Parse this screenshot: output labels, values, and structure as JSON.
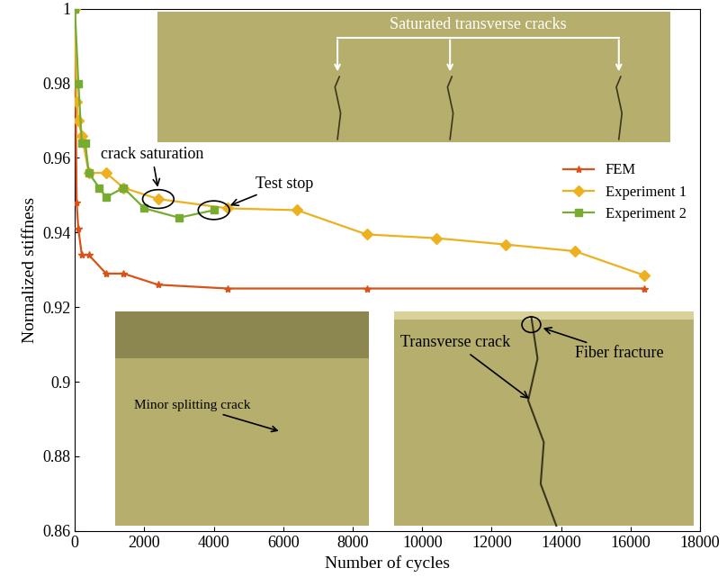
{
  "chart_data": {
    "type": "line",
    "x_label": "Number of cycles",
    "y_label": "Normalized stiffness",
    "xlim": [
      0,
      18000
    ],
    "xticks": [
      0,
      2000,
      4000,
      6000,
      8000,
      10000,
      12000,
      14000,
      16000,
      18000
    ],
    "ylim": [
      0.86,
      1
    ],
    "yticks": [
      0.86,
      0.88,
      0.9,
      0.92,
      0.94,
      0.96,
      0.98,
      1
    ],
    "legend": "upper right",
    "series": [
      {
        "name": "FEM",
        "color": "#d95319",
        "marker": "*",
        "line_style": "solid",
        "x": [
          0,
          50,
          100,
          200,
          400,
          900,
          1400,
          2400,
          4400,
          8400,
          16400
        ],
        "values": [
          1.0,
          0.948,
          0.941,
          0.934,
          0.934,
          0.929,
          0.929,
          0.926,
          0.925,
          0.925,
          0.925
        ]
      },
      {
        "name": "Experiment 1",
        "color": "#edb120",
        "marker": "D",
        "line_style": "solid",
        "x": [
          0,
          50,
          100,
          200,
          400,
          900,
          1400,
          2400,
          4400,
          6400,
          8400,
          10400,
          12400,
          14400,
          16400
        ],
        "values": [
          1.0,
          0.975,
          0.97,
          0.966,
          0.956,
          0.956,
          0.952,
          0.949,
          0.9465,
          0.946,
          0.9395,
          0.9385,
          0.9368,
          0.935,
          0.9285
        ]
      },
      {
        "name": "Experiment 2",
        "color": "#77ac30",
        "marker": "s",
        "line_style": "solid",
        "x": [
          0,
          100,
          200,
          300,
          400,
          700,
          900,
          1400,
          2000,
          3000,
          4000
        ],
        "values": [
          1.0,
          0.98,
          0.964,
          0.964,
          0.956,
          0.952,
          0.9495,
          0.952,
          0.9465,
          0.944,
          0.946
        ]
      }
    ],
    "annotations": [
      {
        "text": "crack saturation",
        "x": 2400,
        "y": 0.949
      },
      {
        "text": "Test stop",
        "x": 4000,
        "y": 0.946
      },
      {
        "text": "Saturated transverse cracks"
      },
      {
        "text": "Minor splitting crack"
      },
      {
        "text": "Transverse crack"
      },
      {
        "text": "Fiber fracture"
      }
    ]
  }
}
